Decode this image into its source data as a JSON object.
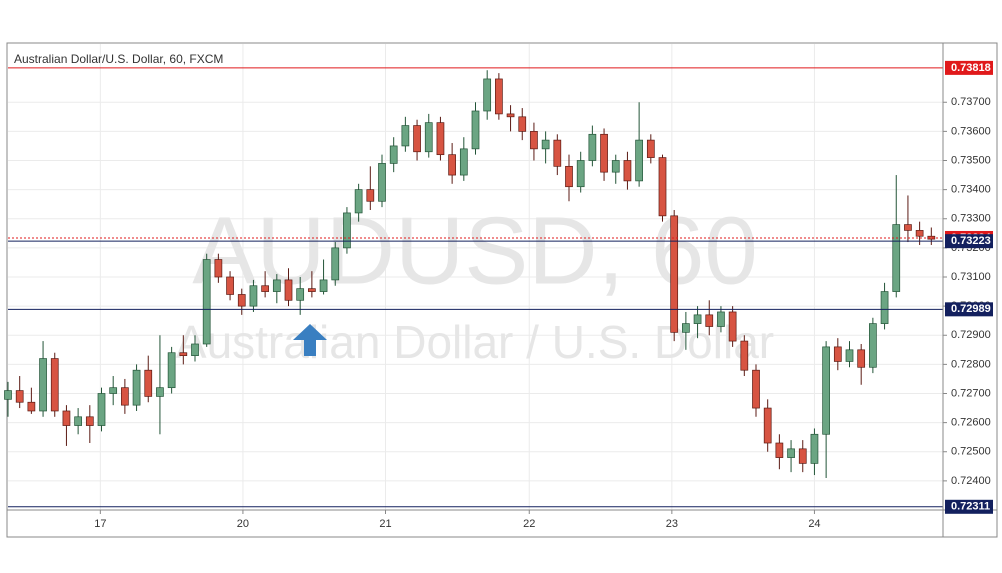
{
  "chart_data": {
    "type": "candlestick",
    "title": "Australian Dollar/U.S. Dollar, 60, FXCM",
    "watermark": "AUDUSD, 60",
    "watermark_subtitle": "Australian Dollar / U.S. Dollar",
    "x": [
      0,
      1,
      2,
      3,
      4,
      5,
      6,
      7,
      8,
      9,
      10,
      11,
      12,
      13,
      14,
      15,
      16,
      17,
      18,
      19,
      20,
      21,
      22,
      23,
      24,
      25,
      26,
      27,
      28,
      29,
      30,
      31,
      32,
      33,
      34,
      35,
      36,
      37,
      38,
      39,
      40,
      41,
      42,
      43,
      44,
      45,
      46,
      47,
      48,
      49,
      50,
      51,
      52,
      53,
      54,
      55,
      56,
      57,
      58,
      59,
      60,
      61,
      62,
      63,
      64,
      65,
      66,
      67,
      68,
      69,
      70,
      71,
      72,
      73,
      74,
      75,
      76,
      77,
      78,
      79
    ],
    "open": [
      0.7268,
      0.7271,
      0.7267,
      0.7264,
      0.7282,
      0.7264,
      0.7259,
      0.7262,
      0.7259,
      0.727,
      0.7272,
      0.7266,
      0.7278,
      0.7269,
      0.7272,
      0.7284,
      0.7283,
      0.7287,
      0.7316,
      0.731,
      0.7304,
      0.73,
      0.7307,
      0.7305,
      0.7309,
      0.7302,
      0.7306,
      0.7305,
      0.7309,
      0.732,
      0.7332,
      0.734,
      0.7336,
      0.7349,
      0.7355,
      0.7362,
      0.7353,
      0.7363,
      0.7352,
      0.7345,
      0.7354,
      0.7367,
      0.7378,
      0.7366,
      0.7365,
      0.736,
      0.7354,
      0.7357,
      0.7348,
      0.7341,
      0.735,
      0.7359,
      0.7346,
      0.735,
      0.7343,
      0.7357,
      0.7351,
      0.7331,
      0.7291,
      0.7294,
      0.7297,
      0.7293,
      0.7298,
      0.7288,
      0.7278,
      0.7265,
      0.7253,
      0.7248,
      0.7251,
      0.7246,
      0.7256,
      0.7286,
      0.7281,
      0.7285,
      0.7279,
      0.7294,
      0.7305,
      0.7328,
      0.7326,
      0.7324
    ],
    "high": [
      0.7274,
      0.7276,
      0.7272,
      0.7288,
      0.7284,
      0.7266,
      0.7265,
      0.7266,
      0.7272,
      0.7276,
      0.7275,
      0.728,
      0.7283,
      0.729,
      0.7286,
      0.729,
      0.729,
      0.7318,
      0.7318,
      0.7312,
      0.7306,
      0.7309,
      0.7312,
      0.7311,
      0.7313,
      0.731,
      0.7312,
      0.7316,
      0.7322,
      0.7334,
      0.7342,
      0.7348,
      0.7352,
      0.7358,
      0.7365,
      0.7364,
      0.7366,
      0.7365,
      0.7356,
      0.7358,
      0.737,
      0.7381,
      0.738,
      0.7369,
      0.7368,
      0.7363,
      0.736,
      0.7359,
      0.7352,
      0.7353,
      0.7362,
      0.7361,
      0.7352,
      0.7353,
      0.737,
      0.7359,
      0.7352,
      0.7333,
      0.7298,
      0.73,
      0.7302,
      0.73,
      0.73,
      0.729,
      0.728,
      0.7268,
      0.7256,
      0.7254,
      0.7254,
      0.7258,
      0.7288,
      0.7289,
      0.7288,
      0.7287,
      0.7296,
      0.7308,
      0.7345,
      0.7338,
      0.7329,
      0.7327
    ],
    "low": [
      0.7262,
      0.7265,
      0.7263,
      0.7262,
      0.7262,
      0.7252,
      0.7256,
      0.7253,
      0.7257,
      0.7266,
      0.7263,
      0.7264,
      0.7267,
      0.7256,
      0.727,
      0.728,
      0.7281,
      0.7286,
      0.7308,
      0.7302,
      0.7297,
      0.7298,
      0.7303,
      0.7301,
      0.73,
      0.7297,
      0.7303,
      0.7304,
      0.7307,
      0.7318,
      0.7329,
      0.7333,
      0.7334,
      0.7346,
      0.7353,
      0.735,
      0.7351,
      0.735,
      0.7342,
      0.7343,
      0.7352,
      0.7364,
      0.7364,
      0.736,
      0.7357,
      0.735,
      0.7349,
      0.7345,
      0.7336,
      0.7339,
      0.7348,
      0.7343,
      0.7342,
      0.734,
      0.7341,
      0.7349,
      0.7329,
      0.7288,
      0.7285,
      0.7289,
      0.729,
      0.7291,
      0.7286,
      0.7276,
      0.7262,
      0.725,
      0.7244,
      0.7243,
      0.7243,
      0.7242,
      0.7241,
      0.7278,
      0.7279,
      0.7273,
      0.7277,
      0.7292,
      0.7303,
      0.7322,
      0.7321,
      0.7321
    ],
    "close": [
      0.7271,
      0.7267,
      0.7264,
      0.7282,
      0.7264,
      0.7259,
      0.7262,
      0.7259,
      0.727,
      0.7272,
      0.7266,
      0.7278,
      0.7269,
      0.7272,
      0.7284,
      0.7283,
      0.7287,
      0.7316,
      0.731,
      0.7304,
      0.73,
      0.7307,
      0.7305,
      0.7309,
      0.7302,
      0.7306,
      0.7305,
      0.7309,
      0.732,
      0.7332,
      0.734,
      0.7336,
      0.7349,
      0.7355,
      0.7362,
      0.7353,
      0.7363,
      0.7352,
      0.7345,
      0.7354,
      0.7367,
      0.7378,
      0.7366,
      0.7365,
      0.736,
      0.7354,
      0.7357,
      0.7348,
      0.7341,
      0.735,
      0.7359,
      0.7346,
      0.735,
      0.7343,
      0.7357,
      0.7351,
      0.7331,
      0.7291,
      0.7294,
      0.7297,
      0.7293,
      0.7298,
      0.7288,
      0.7278,
      0.7265,
      0.7253,
      0.7248,
      0.7251,
      0.7246,
      0.7256,
      0.7286,
      0.7281,
      0.7285,
      0.7279,
      0.7294,
      0.7305,
      0.7328,
      0.7326,
      0.7324,
      0.7323
    ],
    "up_color": "#6ba583",
    "down_color": "#d75442",
    "xlim": [
      0,
      80
    ],
    "xticks": [
      {
        "value": 7.9,
        "label": "17"
      },
      {
        "value": 20.1,
        "label": "20"
      },
      {
        "value": 32.3,
        "label": "21"
      },
      {
        "value": 44.6,
        "label": "22"
      },
      {
        "value": 56.8,
        "label": "23"
      },
      {
        "value": 69.0,
        "label": "24"
      }
    ],
    "ylim": [
      0.723,
      0.739
    ],
    "yticks": [
      {
        "value": 0.724,
        "label": "0.72400"
      },
      {
        "value": 0.725,
        "label": "0.72500"
      },
      {
        "value": 0.726,
        "label": "0.72600"
      },
      {
        "value": 0.727,
        "label": "0.72700"
      },
      {
        "value": 0.728,
        "label": "0.72800"
      },
      {
        "value": 0.729,
        "label": "0.72900"
      },
      {
        "value": 0.73,
        "label": "0.73000"
      },
      {
        "value": 0.731,
        "label": "0.73100"
      },
      {
        "value": 0.732,
        "label": "0.73200"
      },
      {
        "value": 0.733,
        "label": "0.73300"
      },
      {
        "value": 0.734,
        "label": "0.73400"
      },
      {
        "value": 0.735,
        "label": "0.73500"
      },
      {
        "value": 0.736,
        "label": "0.73600"
      },
      {
        "value": 0.737,
        "label": "0.73700"
      }
    ],
    "grid": true,
    "levels": [
      {
        "value": 0.73818,
        "color": "#e0191b",
        "dashed": false
      },
      {
        "value": 0.73234,
        "color": "#e0191b",
        "dashed": true
      },
      {
        "value": 0.73223,
        "color": "#13205e",
        "dashed": false
      },
      {
        "value": 0.72989,
        "color": "#13205e",
        "dashed": false
      },
      {
        "value": 0.72311,
        "color": "#13205e",
        "dashed": false
      }
    ]
  }
}
